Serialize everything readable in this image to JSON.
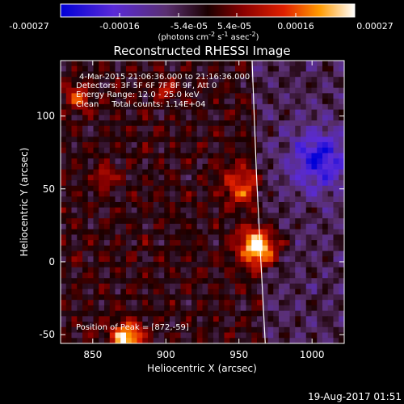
{
  "colorbar": {
    "ticks": [
      "-0.00027",
      "-0.00016",
      "-5.4e-05",
      "5.4e-05",
      "0.00016",
      "0.00027"
    ],
    "unit_main": "(photons cm",
    "unit_exp1": "-2",
    "unit_mid": " s",
    "unit_exp2": "-1",
    "unit_tail": " asec",
    "unit_exp3": "-2",
    "unit_close": ")"
  },
  "annotations": {
    "time": "4-Mar-2015 21:06:36.000 to 21:16:36.000",
    "detectors": "Detectors: 3F 5F 6F 7F 8F 9F, Att 0",
    "energy": "Energy Range: 12.0 - 25.0 keV",
    "algorithm": "Clean     Total counts: 1.14E+04",
    "peak": "Position of Peak = [872,-59]"
  },
  "footer": {
    "timestamp": "19-Aug-2017 01:51"
  },
  "colors": {
    "background": "#000000",
    "limb": "#ffffff"
  },
  "chart_data": {
    "type": "heatmap",
    "title": "Reconstructed RHESSI Image",
    "xlabel": "Heliocentric X (arcsec)",
    "ylabel": "Heliocentric Y (arcsec)",
    "xlim": [
      828,
      1022
    ],
    "ylim": [
      -56,
      138
    ],
    "x_ticks": [
      850,
      900,
      950,
      1000
    ],
    "y_ticks": [
      -50,
      0,
      50,
      100
    ],
    "x_tick_labels": [
      "850",
      "900",
      "950",
      "1000"
    ],
    "y_tick_labels": [
      "-50",
      "0",
      "50",
      "100"
    ],
    "value_range": [
      -0.00027,
      0.00027
    ],
    "peak_position": [
      872,
      -59
    ],
    "grid_nx": 52,
    "grid_ny": 52,
    "sources": [
      {
        "x": 964,
        "y": 10,
        "amp": 2.0,
        "sig": 9
      },
      {
        "x": 952,
        "y": 52,
        "amp": 1.0,
        "sig": 9
      },
      {
        "x": 873,
        "y": -52,
        "amp": 1.8,
        "sig": 7
      },
      {
        "x": 840,
        "y": 112,
        "amp": 0.9,
        "sig": 6
      },
      {
        "x": 858,
        "y": 58,
        "amp": 0.8,
        "sig": 5
      },
      {
        "x": 900,
        "y": 118,
        "amp": 0.7,
        "sig": 5
      },
      {
        "x": 1005,
        "y": 70,
        "amp": -1.2,
        "sig": 14
      }
    ],
    "limb": [
      [
        959,
        138
      ],
      [
        962,
        60
      ],
      [
        965,
        0
      ],
      [
        968,
        -56
      ]
    ]
  }
}
